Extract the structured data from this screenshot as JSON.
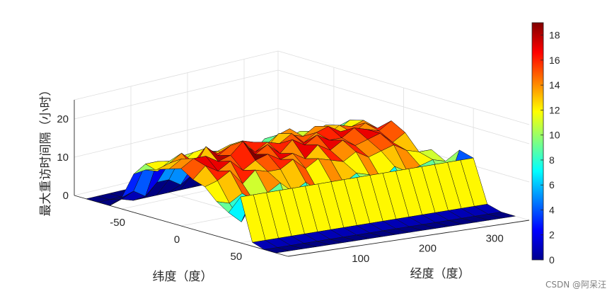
{
  "chart_data": {
    "type": "surface3d",
    "title": "",
    "xlabel": "纬度（度）",
    "ylabel": "经度（度）",
    "zlabel": "最大重访时间隔（小时）",
    "xlim": [
      -90,
      90
    ],
    "ylim": [
      0,
      360
    ],
    "zlim": [
      0,
      25
    ],
    "x_ticks": [
      -50,
      0,
      50
    ],
    "y_ticks": [
      100,
      200,
      300
    ],
    "z_ticks": [
      0,
      10,
      20
    ],
    "colormap": "jet",
    "colorbar": {
      "min": 0,
      "max": 19,
      "ticks": [
        0,
        2,
        4,
        6,
        8,
        10,
        12,
        14,
        16,
        18
      ]
    },
    "grid": true,
    "latitudes": [
      -80,
      -70,
      -60,
      -50,
      -40,
      -30,
      -20,
      -10,
      0,
      10,
      20,
      30,
      40,
      50,
      60,
      70,
      80
    ],
    "longitudes": [
      0,
      20,
      40,
      60,
      80,
      100,
      120,
      140,
      160,
      180,
      200,
      220,
      240,
      260,
      280,
      300,
      320,
      340,
      360
    ],
    "z_values": [
      [
        0,
        0,
        0,
        0,
        0,
        0,
        0,
        0,
        0,
        0,
        0,
        0,
        0,
        0,
        0,
        0,
        0,
        0,
        0
      ],
      [
        0,
        0,
        0,
        0,
        0,
        0,
        0,
        0,
        0,
        0,
        0,
        0,
        0,
        0,
        0,
        0,
        0,
        0,
        0
      ],
      [
        0,
        1,
        0,
        0,
        0,
        0,
        0,
        0,
        0,
        0,
        0,
        0,
        0,
        0,
        0,
        0,
        0,
        0,
        0
      ],
      [
        3,
        4,
        2,
        5,
        5,
        3,
        5,
        3,
        2,
        4,
        5,
        3,
        2,
        3,
        4,
        2,
        3,
        1,
        5
      ],
      [
        10,
        12,
        12,
        11,
        12,
        9,
        12,
        10,
        12,
        11,
        9,
        12,
        10,
        11,
        12,
        10,
        9,
        11,
        6
      ],
      [
        12,
        11,
        13,
        12,
        14,
        13,
        13,
        14,
        11,
        13,
        12,
        14,
        15,
        12,
        13,
        14,
        12,
        14,
        12
      ],
      [
        13,
        14,
        16,
        13,
        16,
        14,
        13,
        16,
        15,
        13,
        16,
        15,
        14,
        16,
        13,
        15,
        14,
        15,
        8
      ],
      [
        14,
        16,
        13,
        18,
        15,
        17,
        17,
        14,
        16,
        15,
        17,
        14,
        16,
        17,
        15,
        14,
        16,
        14,
        5
      ],
      [
        15,
        17,
        17,
        15,
        16,
        19,
        15,
        17,
        14,
        17,
        15,
        17,
        15,
        15,
        17,
        16,
        15,
        17,
        6
      ],
      [
        13,
        16,
        14,
        16,
        13,
        15,
        16,
        14,
        15,
        13,
        16,
        14,
        16,
        14,
        15,
        16,
        13,
        15,
        8
      ],
      [
        12,
        13,
        15,
        11,
        14,
        13,
        13,
        15,
        12,
        14,
        13,
        12,
        14,
        12,
        13,
        14,
        12,
        11,
        11
      ],
      [
        9,
        8,
        10,
        7,
        9,
        11,
        8,
        10,
        7,
        9,
        8,
        10,
        9,
        7,
        10,
        8,
        9,
        10,
        9
      ],
      [
        7,
        4,
        9,
        5,
        7,
        3,
        8,
        4,
        6,
        9,
        5,
        7,
        4,
        8,
        5,
        7,
        6,
        4,
        13
      ],
      [
        12,
        12,
        12,
        12,
        12,
        12,
        12,
        12,
        12,
        12,
        12,
        12,
        12,
        12,
        12,
        12,
        12,
        12,
        12
      ],
      [
        1,
        1,
        1,
        1,
        1,
        1,
        1,
        1,
        1,
        1,
        1,
        1,
        1,
        1,
        1,
        1,
        1,
        1,
        1
      ],
      [
        0,
        0,
        0,
        0,
        0,
        0,
        0,
        0,
        0,
        0,
        0,
        0,
        0,
        0,
        0,
        0,
        0,
        0,
        0
      ],
      [
        0,
        0,
        0,
        0,
        0,
        0,
        0,
        0,
        0,
        0,
        0,
        0,
        0,
        0,
        0,
        0,
        0,
        0,
        0
      ]
    ]
  },
  "watermark": "CSDN @阿呆汪"
}
